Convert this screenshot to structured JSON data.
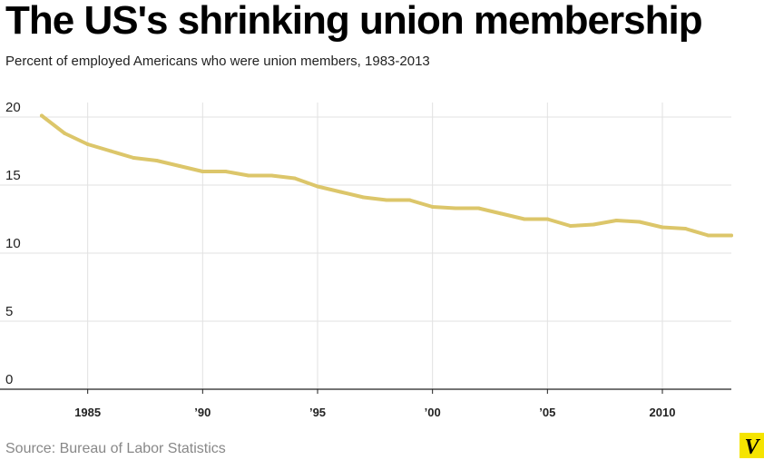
{
  "header": {
    "title": "The US's shrinking union membership",
    "subtitle": "Percent of employed Americans who were union members, 1983-2013"
  },
  "footer": {
    "source": "Source: Bureau of Labor Statistics",
    "logo_letter": "V"
  },
  "colors": {
    "line": "#dcc66a",
    "grid": "#e2e2e2",
    "axis": "#222222",
    "logo_bg": "#f5e400"
  },
  "chart_data": {
    "type": "line",
    "title": "The US's shrinking union membership",
    "subtitle": "Percent of employed Americans who were union members, 1983-2013",
    "xlabel": "",
    "ylabel": "",
    "xlim": [
      1983,
      2013
    ],
    "ylim": [
      0,
      20
    ],
    "y_ticks": [
      0,
      5,
      10,
      15,
      20
    ],
    "x_ticks": [
      {
        "value": 1985,
        "label": "1985"
      },
      {
        "value": 1990,
        "label": "’90"
      },
      {
        "value": 1995,
        "label": "’95"
      },
      {
        "value": 2000,
        "label": "’00"
      },
      {
        "value": 2005,
        "label": "’05"
      },
      {
        "value": 2010,
        "label": "2010"
      }
    ],
    "grid": true,
    "legend": "none",
    "series": [
      {
        "x": [
          1983,
          1984,
          1985,
          1986,
          1987,
          1988,
          1989,
          1990,
          1991,
          1992,
          1993,
          1994,
          1995,
          1996,
          1997,
          1998,
          1999,
          2000,
          2001,
          2002,
          2003,
          2004,
          2005,
          2006,
          2007,
          2008,
          2009,
          2010,
          2011,
          2012,
          2013
        ],
        "values": [
          20.1,
          18.8,
          18.0,
          17.5,
          17.0,
          16.8,
          16.4,
          16.0,
          16.0,
          15.7,
          15.7,
          15.5,
          14.9,
          14.5,
          14.1,
          13.9,
          13.9,
          13.4,
          13.3,
          13.3,
          12.9,
          12.5,
          12.5,
          12.0,
          12.1,
          12.4,
          12.3,
          11.9,
          11.8,
          11.3,
          11.3
        ]
      }
    ]
  },
  "source": "Bureau of Labor Statistics"
}
